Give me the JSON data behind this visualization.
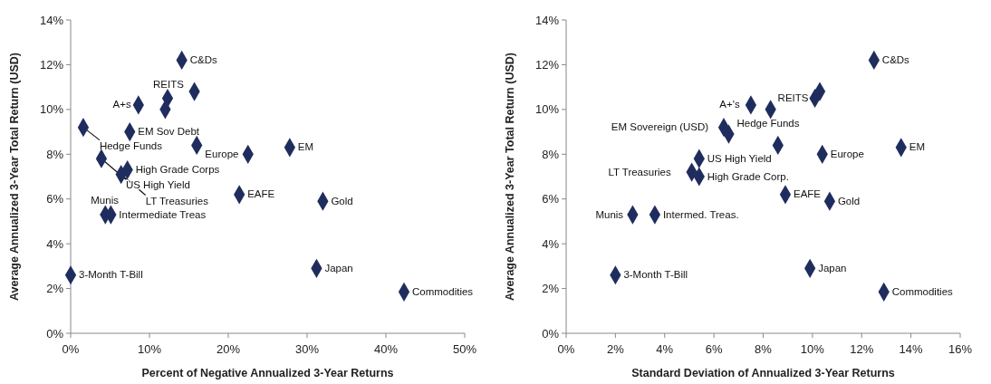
{
  "chart_data": [
    {
      "type": "scatter",
      "xlabel": "Percent of Negative Annualized 3-Year Returns",
      "ylabel": "Average Annualized 3-Year Total Return (USD)",
      "marker": "diamond",
      "grid": false,
      "xlim": [
        0,
        50
      ],
      "xticks": [
        {
          "value": 0,
          "label": "0%"
        },
        {
          "value": 10,
          "label": "10%"
        },
        {
          "value": 20,
          "label": "20%"
        },
        {
          "value": 30,
          "label": "30%"
        },
        {
          "value": 40,
          "label": "40%"
        },
        {
          "value": 50,
          "label": "50%"
        }
      ],
      "ylim": [
        0,
        14
      ],
      "yticks": [
        {
          "value": 0,
          "label": "0%"
        },
        {
          "value": 2,
          "label": "2%"
        },
        {
          "value": 4,
          "label": "4%"
        },
        {
          "value": 6,
          "label": "6%"
        },
        {
          "value": 8,
          "label": "8%"
        },
        {
          "value": 10,
          "label": "10%"
        },
        {
          "value": 12,
          "label": "12%"
        },
        {
          "value": 14,
          "label": "14%"
        }
      ],
      "series": [
        {
          "color": "#1f2d5e",
          "x": [
            14.1,
            15.7,
            12.3,
            12.0,
            8.6,
            1.6,
            7.5,
            16.0,
            22.5,
            27.8,
            3.9,
            7.2,
            6.4,
            21.4,
            32.0,
            4.4,
            5.1,
            0.0,
            31.2,
            42.3
          ],
          "values": [
            12.2,
            10.8,
            10.5,
            10.0,
            10.2,
            9.2,
            9.0,
            8.4,
            8.0,
            8.3,
            7.8,
            7.3,
            7.1,
            6.2,
            5.9,
            5.3,
            5.3,
            2.6,
            2.9,
            1.85
          ]
        }
      ],
      "annotations": [
        {
          "text": "C&Ds",
          "x": 14.1,
          "y": 12.2
        },
        {
          "text": "REITS",
          "x": 12.3,
          "y": 10.5
        },
        {
          "text": "A+s",
          "x": 8.6,
          "y": 10.2
        },
        {
          "text": "Hedge Funds",
          "x": 1.6,
          "y": 9.2
        },
        {
          "text": "EM Sov Debt",
          "x": 7.5,
          "y": 9.0
        },
        {
          "text": "Europe",
          "x": 22.5,
          "y": 8.0
        },
        {
          "text": "EM",
          "x": 27.8,
          "y": 8.3
        },
        {
          "text": "US High Yield",
          "x": 3.9,
          "y": 7.8
        },
        {
          "text": "High Grade Corps",
          "x": 7.2,
          "y": 7.3
        },
        {
          "text": "LT Treasuries",
          "x": 6.4,
          "y": 7.1
        },
        {
          "text": "EAFE",
          "x": 21.4,
          "y": 6.2
        },
        {
          "text": "Gold",
          "x": 32.0,
          "y": 5.9
        },
        {
          "text": "Munis",
          "x": 4.4,
          "y": 5.3
        },
        {
          "text": "Intermediate Treas",
          "x": 5.1,
          "y": 5.3
        },
        {
          "text": "3-Month T-Bill",
          "x": 0.0,
          "y": 2.6
        },
        {
          "text": "Japan",
          "x": 31.2,
          "y": 2.9
        },
        {
          "text": "Commodities",
          "x": 42.3,
          "y": 1.85
        }
      ]
    },
    {
      "type": "scatter",
      "xlabel": "Standard Deviation of Annualized 3-Year Returns",
      "ylabel": "Average Annualized 3-Year Total Return (USD)",
      "marker": "diamond",
      "grid": false,
      "xlim": [
        0,
        16
      ],
      "xticks": [
        {
          "value": 0,
          "label": "0%"
        },
        {
          "value": 2,
          "label": "2%"
        },
        {
          "value": 4,
          "label": "4%"
        },
        {
          "value": 6,
          "label": "6%"
        },
        {
          "value": 8,
          "label": "8%"
        },
        {
          "value": 10,
          "label": "10%"
        },
        {
          "value": 12,
          "label": "12%"
        },
        {
          "value": 14,
          "label": "14%"
        },
        {
          "value": 16,
          "label": "16%"
        }
      ],
      "ylim": [
        0,
        14
      ],
      "yticks": [
        {
          "value": 0,
          "label": "0%"
        },
        {
          "value": 2,
          "label": "2%"
        },
        {
          "value": 4,
          "label": "4%"
        },
        {
          "value": 6,
          "label": "6%"
        },
        {
          "value": 8,
          "label": "8%"
        },
        {
          "value": 10,
          "label": "10%"
        },
        {
          "value": 12,
          "label": "12%"
        },
        {
          "value": 14,
          "label": "14%"
        }
      ],
      "series": [
        {
          "color": "#1f2d5e",
          "x": [
            12.5,
            10.3,
            10.1,
            7.5,
            8.3,
            6.4,
            6.6,
            8.6,
            10.4,
            13.6,
            5.4,
            5.4,
            5.1,
            8.9,
            10.7,
            2.7,
            3.6,
            2.0,
            9.9,
            12.9
          ],
          "values": [
            12.2,
            10.8,
            10.5,
            10.2,
            10.0,
            9.2,
            8.9,
            8.4,
            8.0,
            8.3,
            7.8,
            7.0,
            7.2,
            6.2,
            5.9,
            5.3,
            5.3,
            2.6,
            2.9,
            1.85
          ]
        }
      ],
      "annotations": [
        {
          "text": "C&Ds",
          "x": 12.5,
          "y": 12.2
        },
        {
          "text": "REITS",
          "x": 10.1,
          "y": 10.5
        },
        {
          "text": "A+'s",
          "x": 7.5,
          "y": 10.2
        },
        {
          "text": "EM Sovereign (USD)",
          "x": 6.4,
          "y": 9.2
        },
        {
          "text": "Hedge Funds",
          "x": 6.6,
          "y": 8.9
        },
        {
          "text": "Europe",
          "x": 10.4,
          "y": 8.0
        },
        {
          "text": "EM",
          "x": 13.6,
          "y": 8.3
        },
        {
          "text": "US High Yield",
          "x": 5.4,
          "y": 7.8
        },
        {
          "text": "High Grade Corp.",
          "x": 5.4,
          "y": 7.0
        },
        {
          "text": "LT Treasuries",
          "x": 5.1,
          "y": 7.2
        },
        {
          "text": "EAFE",
          "x": 8.9,
          "y": 6.2
        },
        {
          "text": "Gold",
          "x": 10.7,
          "y": 5.9
        },
        {
          "text": "Munis",
          "x": 2.7,
          "y": 5.3
        },
        {
          "text": "Intermed. Treas.",
          "x": 3.6,
          "y": 5.3
        },
        {
          "text": "3-Month T-Bill",
          "x": 2.0,
          "y": 2.6
        },
        {
          "text": "Japan",
          "x": 9.9,
          "y": 2.9
        },
        {
          "text": "Commodities",
          "x": 12.9,
          "y": 1.85
        }
      ]
    }
  ]
}
